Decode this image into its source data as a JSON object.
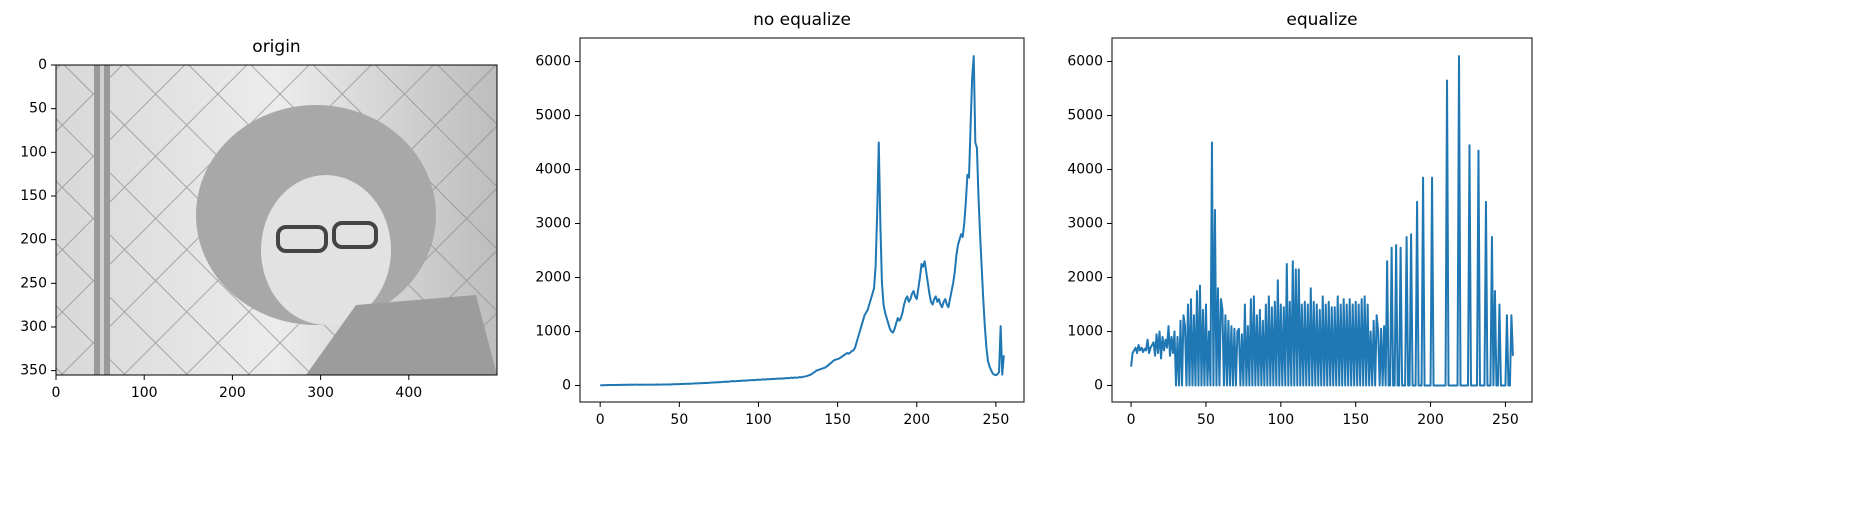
{
  "chart_data": [
    {
      "type": "image",
      "title": "origin",
      "xlim": [
        0,
        500
      ],
      "ylim": [
        355,
        0
      ],
      "xticks": [
        0,
        100,
        200,
        300,
        400
      ],
      "yticks": [
        0,
        50,
        100,
        150,
        200,
        250,
        300,
        350
      ]
    },
    {
      "type": "line",
      "title": "no equalize",
      "xlim": [
        -12.75,
        267.75
      ],
      "ylim": [
        -306,
        6436
      ],
      "xticks": [
        0,
        50,
        100,
        150,
        200,
        250
      ],
      "yticks": [
        0,
        1000,
        2000,
        3000,
        4000,
        5000,
        6000
      ],
      "x": [
        0,
        1,
        2,
        3,
        4,
        5,
        6,
        7,
        8,
        9,
        10,
        11,
        12,
        13,
        14,
        15,
        16,
        17,
        18,
        19,
        20,
        21,
        22,
        23,
        24,
        25,
        26,
        27,
        28,
        29,
        30,
        31,
        32,
        33,
        34,
        35,
        36,
        37,
        38,
        39,
        40,
        41,
        42,
        43,
        44,
        45,
        46,
        47,
        48,
        49,
        50,
        51,
        52,
        53,
        54,
        55,
        56,
        57,
        58,
        59,
        60,
        61,
        62,
        63,
        64,
        65,
        66,
        67,
        68,
        69,
        70,
        71,
        72,
        73,
        74,
        75,
        76,
        77,
        78,
        79,
        80,
        81,
        82,
        83,
        84,
        85,
        86,
        87,
        88,
        89,
        90,
        91,
        92,
        93,
        94,
        95,
        96,
        97,
        98,
        99,
        100,
        101,
        102,
        103,
        104,
        105,
        106,
        107,
        108,
        109,
        110,
        111,
        112,
        113,
        114,
        115,
        116,
        117,
        118,
        119,
        120,
        121,
        122,
        123,
        124,
        125,
        126,
        127,
        128,
        129,
        130,
        131,
        132,
        133,
        134,
        135,
        136,
        137,
        138,
        139,
        140,
        141,
        142,
        143,
        144,
        145,
        146,
        147,
        148,
        149,
        150,
        151,
        152,
        153,
        154,
        155,
        156,
        157,
        158,
        159,
        160,
        161,
        162,
        163,
        164,
        165,
        166,
        167,
        168,
        169,
        170,
        171,
        172,
        173,
        174,
        175,
        176,
        177,
        178,
        179,
        180,
        181,
        182,
        183,
        184,
        185,
        186,
        187,
        188,
        189,
        190,
        191,
        192,
        193,
        194,
        195,
        196,
        197,
        198,
        199,
        200,
        201,
        202,
        203,
        204,
        205,
        206,
        207,
        208,
        209,
        210,
        211,
        212,
        213,
        214,
        215,
        216,
        217,
        218,
        219,
        220,
        221,
        222,
        223,
        224,
        225,
        226,
        227,
        228,
        229,
        230,
        231,
        232,
        233,
        234,
        235,
        236,
        237,
        238,
        239,
        240,
        241,
        242,
        243,
        244,
        245,
        246,
        247,
        248,
        249,
        250,
        251,
        252,
        253,
        254,
        255
      ],
      "series": [
        {
          "color": "#1f77b4",
          "values": [
            2,
            4,
            5,
            6,
            7,
            8,
            9,
            8,
            10,
            9,
            10,
            11,
            10,
            12,
            11,
            13,
            12,
            14,
            13,
            15,
            14,
            13,
            15,
            16,
            14,
            15,
            13,
            14,
            15,
            16,
            14,
            15,
            16,
            15,
            14,
            16,
            17,
            15,
            16,
            18,
            17,
            18,
            19,
            20,
            19,
            21,
            22,
            24,
            23,
            25,
            26,
            28,
            27,
            30,
            29,
            31,
            33,
            32,
            35,
            36,
            38,
            40,
            39,
            42,
            44,
            43,
            46,
            48,
            47,
            50,
            52,
            55,
            54,
            58,
            60,
            62,
            61,
            65,
            68,
            70,
            72,
            70,
            75,
            78,
            80,
            77,
            82,
            85,
            83,
            88,
            90,
            92,
            88,
            95,
            98,
            96,
            100,
            102,
            99,
            105,
            108,
            104,
            110,
            112,
            109,
            115,
            118,
            114,
            120,
            122,
            118,
            125,
            128,
            124,
            130,
            132,
            128,
            135,
            138,
            134,
            140,
            145,
            138,
            150,
            142,
            148,
            155,
            150,
            160,
            165,
            170,
            180,
            190,
            200,
            220,
            240,
            260,
            280,
            290,
            300,
            310,
            320,
            330,
            350,
            370,
            400,
            420,
            450,
            470,
            480,
            490,
            500,
            520,
            540,
            560,
            580,
            600,
            590,
            610,
            640,
            650,
            700,
            800,
            900,
            1000,
            1100,
            1200,
            1300,
            1350,
            1400,
            1500,
            1600,
            1700,
            1800,
            2200,
            3200,
            4500,
            3000,
            1900,
            1500,
            1350,
            1250,
            1150,
            1050,
            1000,
            980,
            1050,
            1150,
            1250,
            1200,
            1250,
            1350,
            1500,
            1600,
            1650,
            1550,
            1600,
            1700,
            1750,
            1650,
            1600,
            1800,
            2000,
            2250,
            2200,
            2300,
            2100,
            1900,
            1700,
            1550,
            1500,
            1600,
            1650,
            1550,
            1600,
            1500,
            1450,
            1550,
            1600,
            1500,
            1450,
            1600,
            1750,
            1900,
            2100,
            2400,
            2600,
            2700,
            2800,
            2750,
            3000,
            3400,
            3900,
            3850,
            4800,
            5700,
            6100,
            4500,
            4400,
            3500,
            2800,
            2200,
            1600,
            1100,
            700,
            450,
            350,
            280,
            220,
            200,
            190,
            210,
            250,
            1100,
            200,
            560
          ]
        }
      ]
    },
    {
      "type": "line",
      "title": "equalize",
      "xlim": [
        -12.75,
        267.75
      ],
      "ylim": [
        -306,
        6436
      ],
      "xticks": [
        0,
        50,
        100,
        150,
        200,
        250
      ],
      "yticks": [
        0,
        1000,
        2000,
        3000,
        4000,
        5000,
        6000
      ],
      "x": [
        0,
        1,
        2,
        3,
        4,
        5,
        6,
        7,
        8,
        9,
        10,
        11,
        12,
        13,
        14,
        15,
        16,
        17,
        18,
        19,
        20,
        21,
        22,
        23,
        24,
        25,
        26,
        27,
        28,
        29,
        30,
        31,
        32,
        33,
        34,
        35,
        36,
        37,
        38,
        39,
        40,
        41,
        42,
        43,
        44,
        45,
        46,
        47,
        48,
        49,
        50,
        51,
        52,
        53,
        54,
        55,
        56,
        57,
        58,
        59,
        60,
        61,
        62,
        63,
        64,
        65,
        66,
        67,
        68,
        69,
        70,
        71,
        72,
        73,
        74,
        75,
        76,
        77,
        78,
        79,
        80,
        81,
        82,
        83,
        84,
        85,
        86,
        87,
        88,
        89,
        90,
        91,
        92,
        93,
        94,
        95,
        96,
        97,
        98,
        99,
        100,
        101,
        102,
        103,
        104,
        105,
        106,
        107,
        108,
        109,
        110,
        111,
        112,
        113,
        114,
        115,
        116,
        117,
        118,
        119,
        120,
        121,
        122,
        123,
        124,
        125,
        126,
        127,
        128,
        129,
        130,
        131,
        132,
        133,
        134,
        135,
        136,
        137,
        138,
        139,
        140,
        141,
        142,
        143,
        144,
        145,
        146,
        147,
        148,
        149,
        150,
        151,
        152,
        153,
        154,
        155,
        156,
        157,
        158,
        159,
        160,
        161,
        162,
        163,
        164,
        165,
        166,
        167,
        168,
        169,
        170,
        171,
        172,
        173,
        174,
        175,
        176,
        177,
        178,
        179,
        180,
        181,
        182,
        183,
        184,
        185,
        186,
        187,
        188,
        189,
        190,
        191,
        192,
        193,
        194,
        195,
        196,
        197,
        198,
        199,
        200,
        201,
        202,
        203,
        204,
        205,
        206,
        207,
        208,
        209,
        210,
        211,
        212,
        213,
        214,
        215,
        216,
        217,
        218,
        219,
        220,
        221,
        222,
        223,
        224,
        225,
        226,
        227,
        228,
        229,
        230,
        231,
        232,
        233,
        234,
        235,
        236,
        237,
        238,
        239,
        240,
        241,
        242,
        243,
        244,
        245,
        246,
        247,
        248,
        249,
        250,
        251,
        252,
        253,
        254,
        255
      ],
      "series": [
        {
          "color": "#1f77b4",
          "values": [
            350,
            600,
            650,
            700,
            600,
            750,
            650,
            700,
            620,
            680,
            650,
            850,
            600,
            700,
            750,
            800,
            550,
            950,
            600,
            1000,
            500,
            900,
            650,
            850,
            700,
            1100,
            550,
            900,
            600,
            1000,
            0,
            900,
            0,
            1200,
            0,
            1300,
            1100,
            0,
            1500,
            0,
            1600,
            0,
            1300,
            0,
            1750,
            0,
            1850,
            0,
            1400,
            0,
            1500,
            0,
            1000,
            0,
            4500,
            0,
            3250,
            0,
            1800,
            0,
            1600,
            1400,
            0,
            1300,
            0,
            1200,
            0,
            1100,
            0,
            1050,
            0,
            1000,
            1050,
            0,
            950,
            0,
            1500,
            0,
            1100,
            0,
            1600,
            0,
            1650,
            0,
            1300,
            0,
            1400,
            0,
            1200,
            0,
            1500,
            0,
            1650,
            0,
            1450,
            0,
            1550,
            0,
            1950,
            0,
            1500,
            0,
            1450,
            0,
            2250,
            0,
            1550,
            0,
            2300,
            0,
            2150,
            0,
            2150,
            0,
            1500,
            0,
            1550,
            0,
            1500,
            0,
            1800,
            0,
            1550,
            0,
            1500,
            0,
            1400,
            0,
            1650,
            0,
            1500,
            0,
            1550,
            0,
            1450,
            0,
            1450,
            0,
            1650,
            0,
            1500,
            0,
            1600,
            0,
            1500,
            0,
            1600,
            0,
            1500,
            0,
            1550,
            0,
            1500,
            0,
            1600,
            0,
            1650,
            0,
            1500,
            0,
            1000,
            0,
            1200,
            0,
            1300,
            1000,
            0,
            1050,
            0,
            1100,
            0,
            2300,
            0,
            0,
            2550,
            0,
            0,
            2600,
            0,
            0,
            2550,
            0,
            0,
            0,
            2750,
            0,
            0,
            2800,
            0,
            0,
            0,
            3400,
            0,
            0,
            0,
            3850,
            0,
            0,
            0,
            0,
            0,
            3850,
            0,
            0,
            0,
            0,
            0,
            0,
            0,
            0,
            0,
            5650,
            0,
            0,
            0,
            0,
            0,
            0,
            0,
            6100,
            0,
            0,
            0,
            0,
            0,
            0,
            4450,
            0,
            0,
            0,
            0,
            0,
            4350,
            0,
            0,
            0,
            0,
            3400,
            0,
            0,
            0,
            2750,
            0,
            1750,
            0,
            0,
            1500,
            0,
            0,
            0,
            0,
            1300,
            0,
            0,
            1300,
            550
          ]
        }
      ]
    }
  ]
}
